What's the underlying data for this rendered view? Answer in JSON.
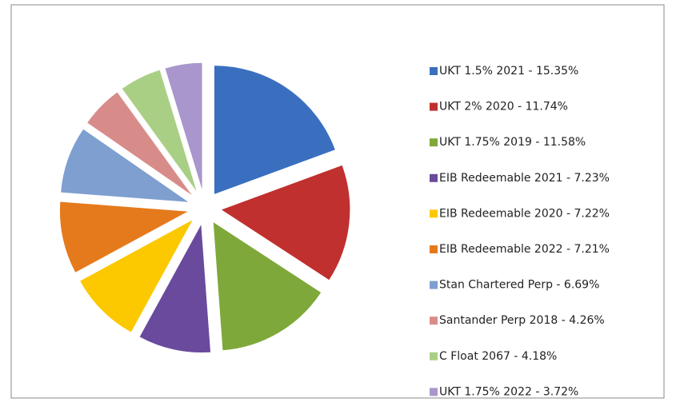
{
  "chart_data": {
    "type": "pie",
    "categories": [
      "UKT 1.5% 2021 - 15.35%",
      "UKT 2% 2020 - 11.74%",
      "UKT 1.75% 2019 - 11.58%",
      "EIB Redeemable 2021 - 7.23%",
      "EIB Redeemable 2020 - 7.22%",
      "EIB Redeemable 2022 - 7.21%",
      "Stan Chartered Perp - 6.69%",
      "Santander Perp 2018 - 4.26%",
      "C Float 2067  - 4.18%",
      "UKT 1.75% 2022 - 3.72%"
    ],
    "values": [
      15.35,
      11.74,
      11.58,
      7.23,
      7.22,
      7.21,
      6.69,
      4.26,
      4.18,
      3.72
    ],
    "colors": [
      "#3a6fc0",
      "#c0302e",
      "#7fa83a",
      "#6a4a9c",
      "#fcc800",
      "#e57a1c",
      "#7e9fd0",
      "#d88c8a",
      "#a9cf85",
      "#a896cc"
    ],
    "legend": "right"
  }
}
